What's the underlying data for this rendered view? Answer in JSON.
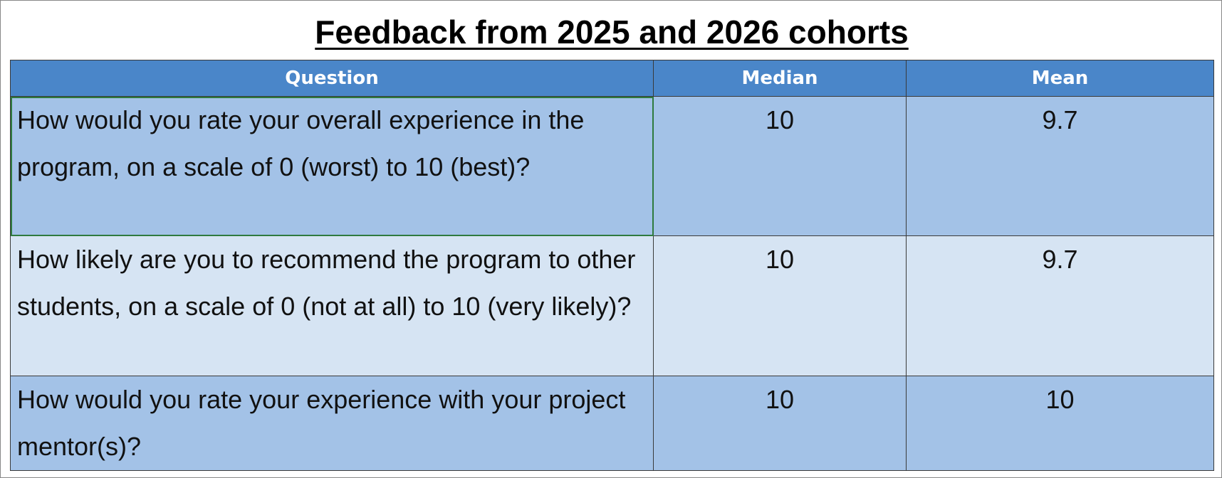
{
  "header": {
    "title": "Feedback from 2025 and 2026 cohorts"
  },
  "table": {
    "columns": [
      "Question",
      "Median",
      "Mean"
    ],
    "rows": [
      [
        "How would you rate your overall experience in the program, on a scale of 0 (worst) to 10 (best)?",
        10,
        9.7
      ],
      [
        "How likely are you to recommend the program to other students, on a scale of 0 (not at all) to 10 (very likely)?",
        10,
        9.7
      ],
      [
        "How would you rate your experience with your project mentor(s)?",
        10,
        10
      ]
    ]
  }
}
